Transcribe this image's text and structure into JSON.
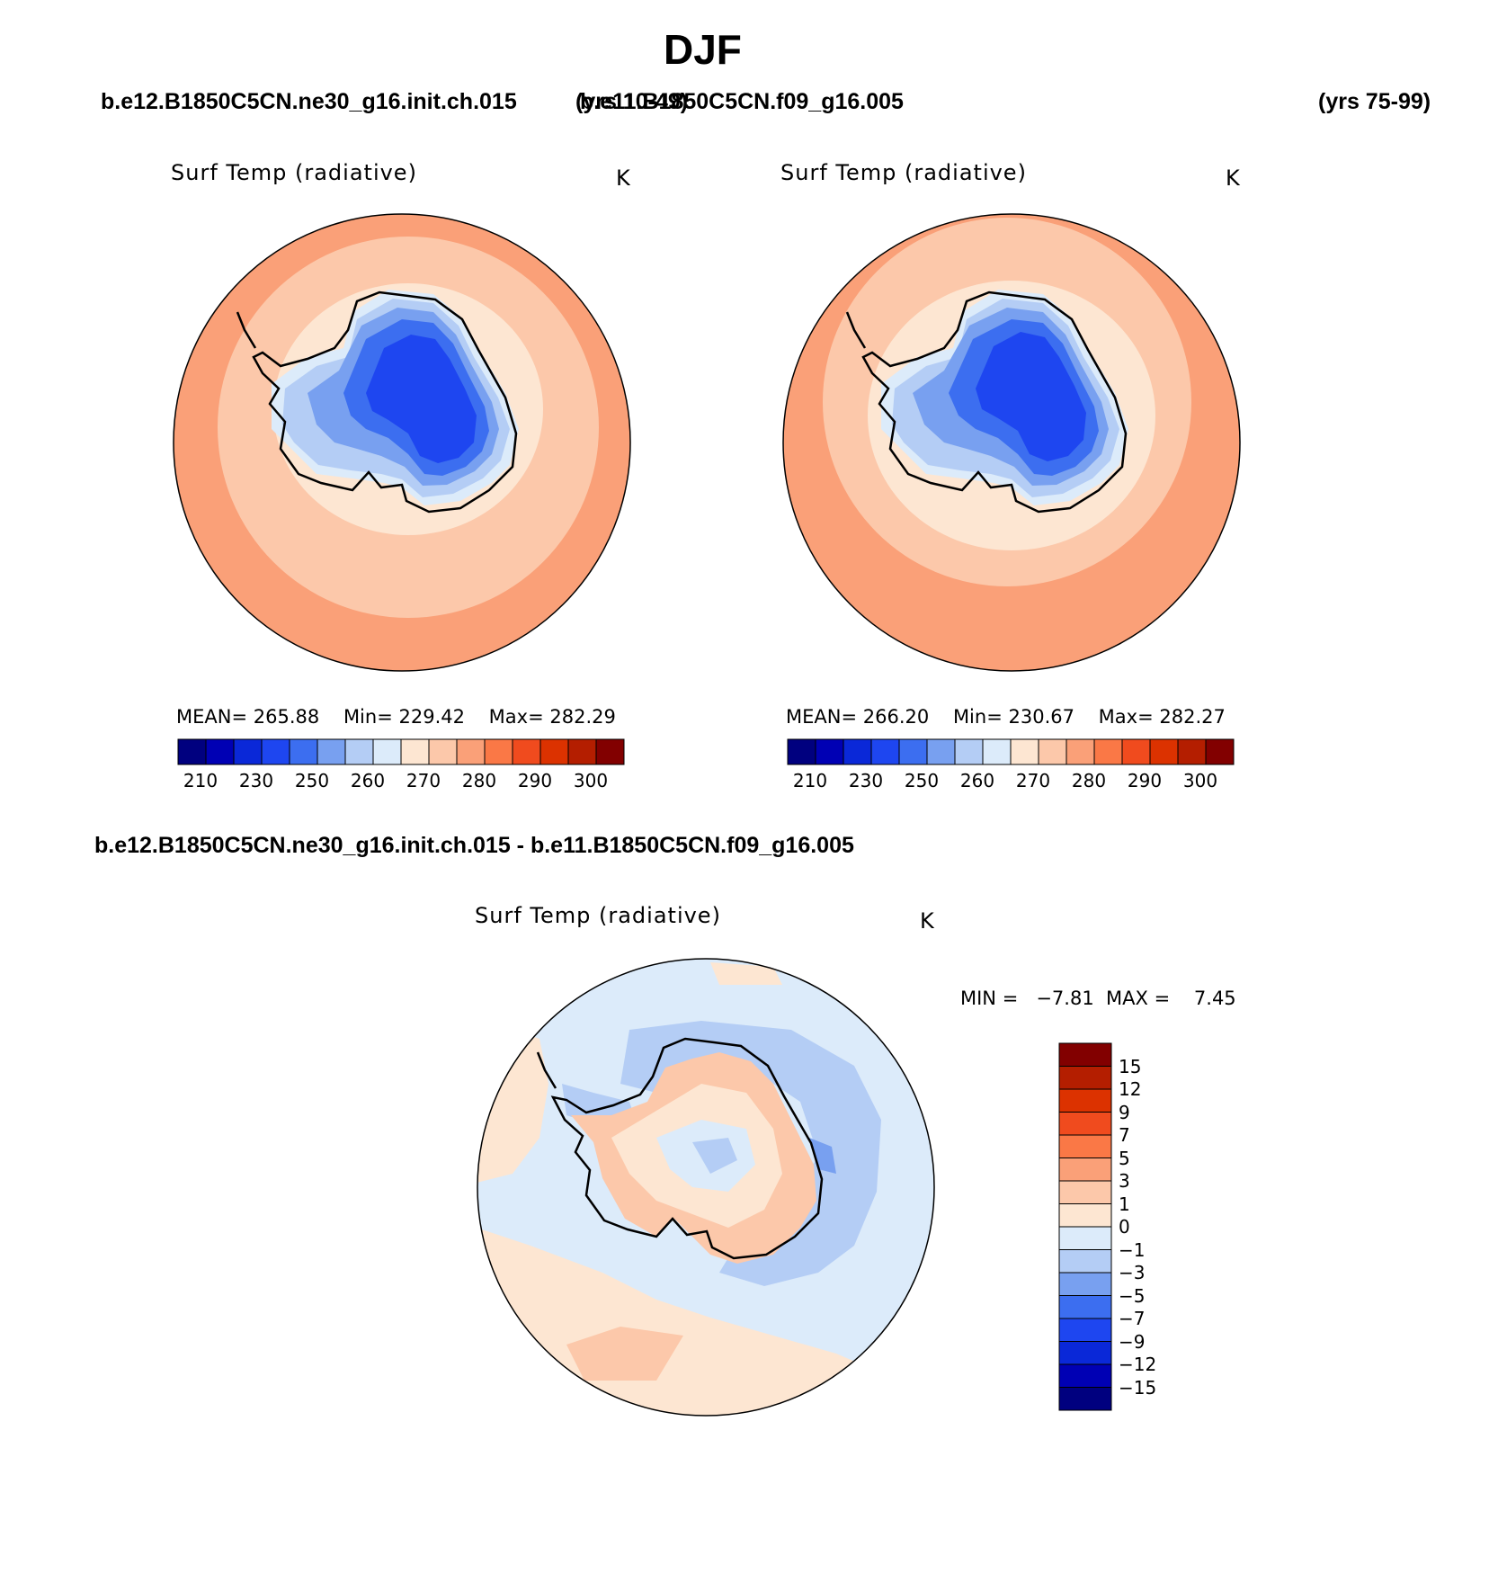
{
  "figure": {
    "season_title": "DJF",
    "case1": {
      "name": "b.e12.B1850C5CN.ne30_g16.init.ch.015",
      "years": "(yrs 10-49)"
    },
    "case2": {
      "name": "b.e11.B1850C5CN.f09_g16.005",
      "years": "(yrs 75-99)"
    },
    "diff_title": "b.e12.B1850C5CN.ne30_g16.init.ch.015 - b.e11.B1850C5CN.f09_g16.005"
  },
  "panels": [
    {
      "id": "case1",
      "variable": "Surf Temp (radiative)",
      "units": "K",
      "stats": {
        "mean_label": "MEAN=",
        "mean": "265.88",
        "min_label": "Min=",
        "min": "229.42",
        "max_label": "Max=",
        "max": "282.29"
      }
    },
    {
      "id": "case2",
      "variable": "Surf Temp (radiative)",
      "units": "K",
      "stats": {
        "mean_label": "MEAN=",
        "mean": "266.20",
        "min_label": "Min=",
        "min": "230.67",
        "max_label": "Max=",
        "max": "282.27"
      }
    },
    {
      "id": "diff",
      "variable": "Surf Temp (radiative)",
      "units": "K",
      "stats": {
        "min_label": "MIN =",
        "min": "−7.81",
        "max_label": "MAX =",
        "max": "7.45"
      }
    }
  ],
  "colorbars": {
    "abs": {
      "colors": [
        "#00007f",
        "#0000b4",
        "#0a28d8",
        "#1e46f0",
        "#3c6ef0",
        "#78a0f0",
        "#b4cdf5",
        "#dcebfa",
        "#fde6d2",
        "#fcc8aa",
        "#faa078",
        "#fa7846",
        "#f04b1e",
        "#dc3200",
        "#b41e00",
        "#820000"
      ],
      "tick_labels": [
        "210",
        "230",
        "250",
        "260",
        "270",
        "280",
        "290",
        "300"
      ]
    },
    "diff": {
      "colors_top_to_bottom": [
        "#820000",
        "#b41e00",
        "#dc3200",
        "#f04b1e",
        "#fa7846",
        "#faa078",
        "#fcc8aa",
        "#fde6d2",
        "#dcebfa",
        "#b4cdf5",
        "#78a0f0",
        "#3c6ef0",
        "#1e46f0",
        "#0a28d8",
        "#0000b4",
        "#00007f"
      ],
      "tick_labels": [
        "15",
        "12",
        "9",
        "7",
        "5",
        "3",
        "1",
        "0",
        "−1",
        "−3",
        "−5",
        "−7",
        "−9",
        "−12",
        "−15"
      ]
    }
  }
}
